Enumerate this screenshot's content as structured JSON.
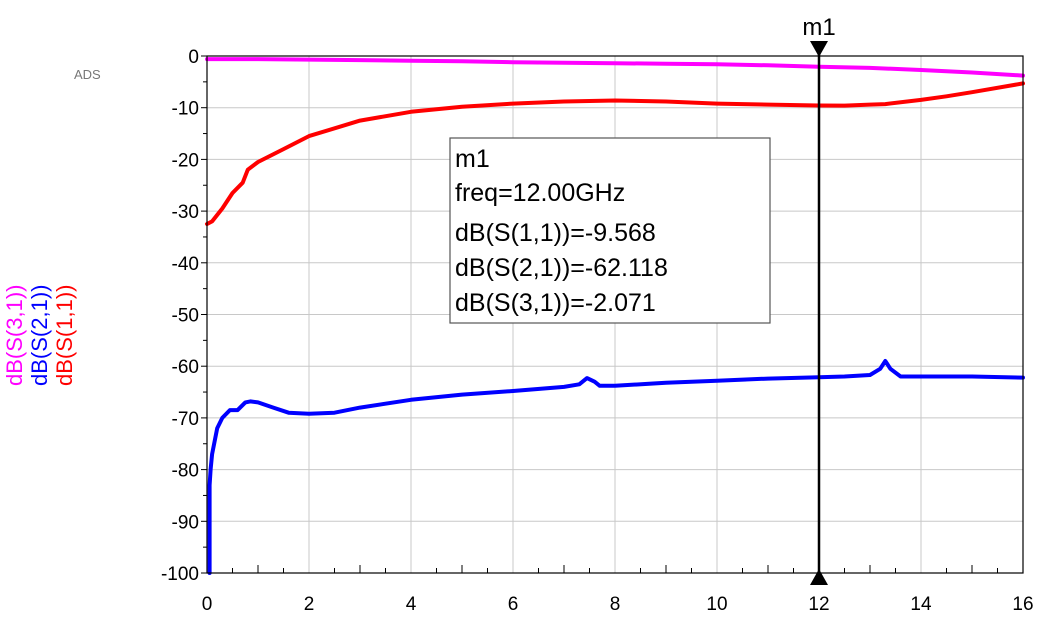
{
  "watermark": "ADS",
  "chart_data": {
    "type": "line",
    "title": "",
    "xlabel": "",
    "xlim": [
      0,
      16
    ],
    "ylim": [
      -100,
      0
    ],
    "x_ticks": [
      0,
      2,
      4,
      6,
      8,
      10,
      12,
      14,
      16
    ],
    "y_ticks": [
      0,
      -10,
      -20,
      -30,
      -40,
      -50,
      -60,
      -70,
      -80,
      -90,
      -100
    ],
    "grid": true,
    "ylabels": [
      {
        "text": "dB(S(3,1))",
        "color": "#ff00ff"
      },
      {
        "text": "dB(S(2,1))",
        "color": "#0000ff"
      },
      {
        "text": "dB(S(1,1))",
        "color": "#ff0000"
      }
    ],
    "series": [
      {
        "name": "dB(S(3,1))",
        "color": "#ff00ff",
        "x": [
          0,
          1,
          2,
          3,
          4,
          5,
          6,
          7,
          8,
          9,
          10,
          11,
          12,
          13,
          14,
          15,
          16
        ],
        "y": [
          -0.6,
          -0.6,
          -0.7,
          -0.8,
          -0.9,
          -1.0,
          -1.2,
          -1.3,
          -1.4,
          -1.5,
          -1.6,
          -1.8,
          -2.07,
          -2.3,
          -2.7,
          -3.2,
          -3.8
        ]
      },
      {
        "name": "dB(S(1,1))",
        "color": "#ff0000",
        "x": [
          0,
          0.1,
          0.3,
          0.5,
          0.7,
          0.8,
          1,
          1.5,
          2,
          3,
          4,
          5,
          6,
          7,
          8,
          9,
          10,
          11,
          12,
          12.5,
          13,
          13.3,
          14,
          14.5,
          15,
          16
        ],
        "y": [
          -32.5,
          -32,
          -29.5,
          -26.5,
          -24.5,
          -22,
          -20.5,
          -18,
          -15.5,
          -12.5,
          -10.8,
          -9.8,
          -9.2,
          -8.8,
          -8.6,
          -8.8,
          -9.2,
          -9.4,
          -9.568,
          -9.6,
          -9.4,
          -9.3,
          -8.5,
          -7.8,
          -7,
          -5.3
        ]
      },
      {
        "name": "dB(S(2,1))",
        "color": "#0000ff",
        "x": [
          0.05,
          0.05,
          0.07,
          0.1,
          0.2,
          0.3,
          0.45,
          0.6,
          0.75,
          0.85,
          1,
          1.3,
          1.6,
          2,
          2.5,
          3,
          4,
          5,
          6,
          7,
          7.3,
          7.45,
          7.6,
          7.7,
          8,
          9,
          10,
          11,
          12,
          12.5,
          13,
          13.2,
          13.3,
          13.4,
          13.6,
          14,
          15,
          16
        ],
        "y": [
          -100,
          -83,
          -80,
          -77,
          -72,
          -70,
          -68.5,
          -68.5,
          -67,
          -66.8,
          -67,
          -68,
          -69,
          -69.2,
          -69,
          -68,
          -66.5,
          -65.5,
          -64.8,
          -64,
          -63.5,
          -62.3,
          -63,
          -63.8,
          -63.8,
          -63.2,
          -62.8,
          -62.4,
          -62.118,
          -62,
          -61.7,
          -60.5,
          -59,
          -60.5,
          -62,
          -62,
          -62,
          -62.2
        ]
      }
    ],
    "marker": {
      "name": "m1",
      "x": 12,
      "readout": [
        "m1",
        "freq=12.00GHz",
        "dB(S(1,1))=-9.568",
        "dB(S(2,1))=-62.118",
        "dB(S(3,1))=-2.071"
      ]
    }
  }
}
